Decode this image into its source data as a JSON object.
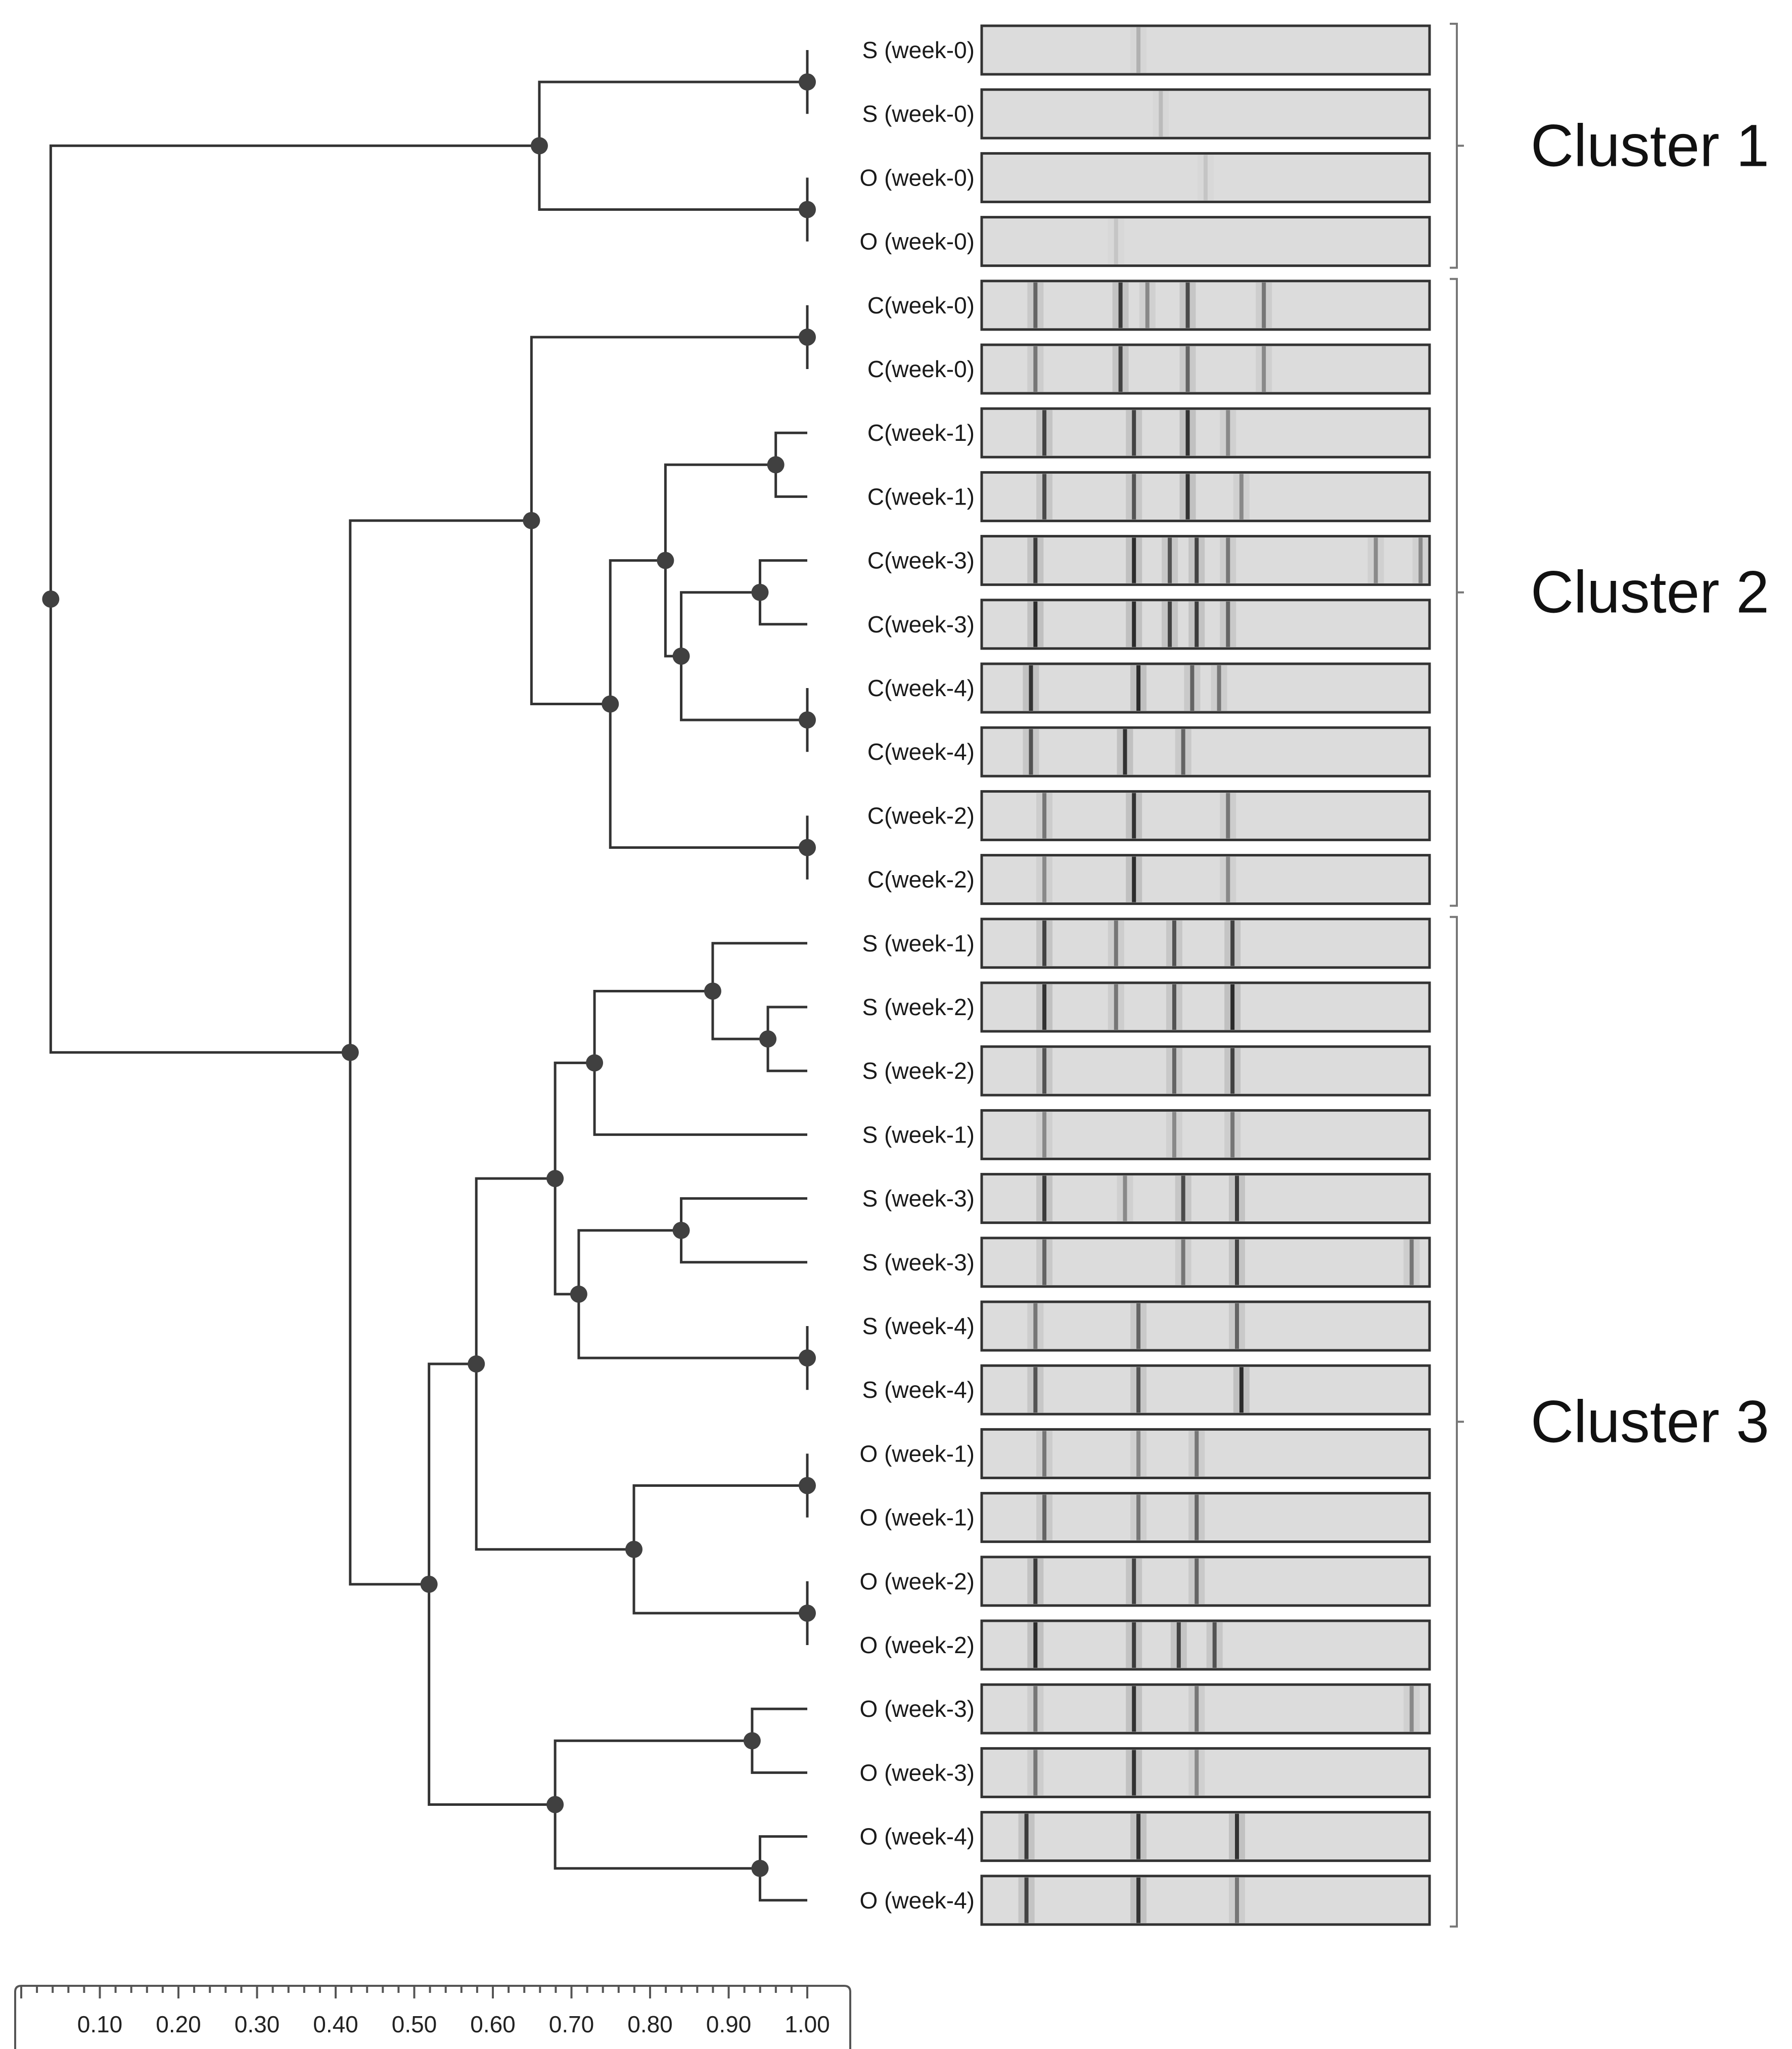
{
  "chart_data": {
    "type": "dendrogram",
    "title": "",
    "axis": {
      "ticks": [
        "0.10",
        "0.20",
        "0.30",
        "0.40",
        "0.50",
        "0.60",
        "0.70",
        "0.80",
        "0.90",
        "1.00"
      ],
      "range": [
        0.0,
        1.0
      ]
    },
    "lanes": [
      "S (week-0)",
      "S (week-0)",
      "O (week-0)",
      "O (week-0)",
      "C(week-0)",
      "C(week-0)",
      "C(week-1)",
      "C(week-1)",
      "C(week-3)",
      "C(week-3)",
      "C(week-4)",
      "C(week-4)",
      "C(week-2)",
      "C(week-2)",
      "S (week-1)",
      "S (week-2)",
      "S (week-2)",
      "S (week-1)",
      "S (week-3)",
      "S (week-3)",
      "S (week-4)",
      "S (week-4)",
      "O (week-1)",
      "O (week-1)",
      "O (week-2)",
      "O (week-2)",
      "O (week-3)",
      "O (week-3)",
      "O (week-4)",
      "O (week-4)"
    ],
    "clusters": [
      {
        "label": "Cluster 1",
        "first_lane": 0,
        "last_lane": 3
      },
      {
        "label": "Cluster 2",
        "first_lane": 4,
        "last_lane": 13
      },
      {
        "label": "Cluster 3",
        "first_lane": 14,
        "last_lane": 29
      }
    ],
    "merges": [
      {
        "id": "n1",
        "similarity": 1.0,
        "children": [
          "L0",
          "L1"
        ]
      },
      {
        "id": "n2",
        "similarity": 1.0,
        "children": [
          "L2",
          "L3"
        ]
      },
      {
        "id": "n3",
        "similarity": 0.66,
        "children": [
          "n1",
          "n2"
        ]
      },
      {
        "id": "n4",
        "similarity": 1.0,
        "children": [
          "L4",
          "L5"
        ]
      },
      {
        "id": "n5",
        "similarity": 0.96,
        "children": [
          "L6",
          "L7"
        ]
      },
      {
        "id": "n6",
        "similarity": 0.94,
        "children": [
          "L8",
          "L9"
        ]
      },
      {
        "id": "n7",
        "similarity": 1.0,
        "children": [
          "L10",
          "L11"
        ]
      },
      {
        "id": "n8",
        "similarity": 0.84,
        "children": [
          "n6",
          "n7"
        ]
      },
      {
        "id": "n9",
        "similarity": 0.82,
        "children": [
          "n5",
          "n8"
        ]
      },
      {
        "id": "n10",
        "similarity": 1.0,
        "children": [
          "L12",
          "L13"
        ]
      },
      {
        "id": "n11",
        "similarity": 0.75,
        "children": [
          "n9",
          "n10"
        ]
      },
      {
        "id": "n12",
        "similarity": 0.65,
        "children": [
          "n4",
          "n11"
        ]
      },
      {
        "id": "n13",
        "similarity": 0.95,
        "children": [
          "L15",
          "L16"
        ]
      },
      {
        "id": "n14",
        "similarity": 0.88,
        "children": [
          "L14",
          "n13"
        ]
      },
      {
        "id": "n15",
        "similarity": 0.73,
        "children": [
          "n14",
          "L17"
        ]
      },
      {
        "id": "n16",
        "similarity": 0.84,
        "children": [
          "L18",
          "L19"
        ]
      },
      {
        "id": "n17",
        "similarity": 1.0,
        "children": [
          "L20",
          "L21"
        ]
      },
      {
        "id": "n18",
        "similarity": 0.71,
        "children": [
          "n16",
          "n17"
        ]
      },
      {
        "id": "n19",
        "similarity": 0.68,
        "children": [
          "n15",
          "n18"
        ]
      },
      {
        "id": "n20",
        "similarity": 1.0,
        "children": [
          "L22",
          "L23"
        ]
      },
      {
        "id": "n21",
        "similarity": 1.0,
        "children": [
          "L24",
          "L25"
        ]
      },
      {
        "id": "n22",
        "similarity": 0.78,
        "children": [
          "n20",
          "n21"
        ]
      },
      {
        "id": "n23",
        "similarity": 0.58,
        "children": [
          "n19",
          "n22"
        ]
      },
      {
        "id": "n24",
        "similarity": 0.93,
        "children": [
          "L26",
          "L27"
        ]
      },
      {
        "id": "n25",
        "similarity": 0.94,
        "children": [
          "L28",
          "L29"
        ]
      },
      {
        "id": "n26",
        "similarity": 0.68,
        "children": [
          "n24",
          "n25"
        ]
      },
      {
        "id": "n27",
        "similarity": 0.52,
        "children": [
          "n23",
          "n26"
        ]
      },
      {
        "id": "n28",
        "similarity": 0.42,
        "children": [
          "n12",
          "n27"
        ]
      },
      {
        "id": "n29",
        "similarity": 0.04,
        "children": [
          "n3",
          "n28"
        ]
      }
    ],
    "lane_bands": [
      [
        [
          0.35,
          0.2
        ]
      ],
      [
        [
          0.4,
          0.15
        ]
      ],
      [
        [
          0.5,
          0.1
        ]
      ],
      [
        [
          0.3,
          0.1
        ]
      ],
      [
        [
          0.12,
          0.6
        ],
        [
          0.31,
          0.85
        ],
        [
          0.37,
          0.4
        ],
        [
          0.46,
          0.75
        ],
        [
          0.63,
          0.5
        ]
      ],
      [
        [
          0.12,
          0.5
        ],
        [
          0.31,
          0.8
        ],
        [
          0.46,
          0.6
        ],
        [
          0.63,
          0.4
        ]
      ],
      [
        [
          0.14,
          0.8
        ],
        [
          0.34,
          0.8
        ],
        [
          0.46,
          0.9
        ],
        [
          0.55,
          0.4
        ]
      ],
      [
        [
          0.14,
          0.75
        ],
        [
          0.34,
          0.7
        ],
        [
          0.46,
          0.9
        ],
        [
          0.58,
          0.4
        ]
      ],
      [
        [
          0.12,
          0.85
        ],
        [
          0.34,
          0.95
        ],
        [
          0.42,
          0.7
        ],
        [
          0.48,
          0.8
        ],
        [
          0.55,
          0.5
        ],
        [
          0.88,
          0.4
        ],
        [
          0.98,
          0.4
        ]
      ],
      [
        [
          0.12,
          0.95
        ],
        [
          0.34,
          0.95
        ],
        [
          0.42,
          0.8
        ],
        [
          0.48,
          0.85
        ],
        [
          0.55,
          0.6
        ]
      ],
      [
        [
          0.11,
          0.9
        ],
        [
          0.35,
          0.95
        ],
        [
          0.47,
          0.6
        ],
        [
          0.53,
          0.5
        ]
      ],
      [
        [
          0.11,
          0.7
        ],
        [
          0.32,
          0.9
        ],
        [
          0.45,
          0.6
        ]
      ],
      [
        [
          0.14,
          0.5
        ],
        [
          0.34,
          0.9
        ],
        [
          0.55,
          0.5
        ]
      ],
      [
        [
          0.14,
          0.4
        ],
        [
          0.34,
          0.95
        ],
        [
          0.55,
          0.4
        ]
      ],
      [
        [
          0.14,
          0.8
        ],
        [
          0.3,
          0.5
        ],
        [
          0.43,
          0.7
        ],
        [
          0.56,
          0.8
        ]
      ],
      [
        [
          0.14,
          0.9
        ],
        [
          0.3,
          0.5
        ],
        [
          0.43,
          0.7
        ],
        [
          0.56,
          0.95
        ]
      ],
      [
        [
          0.14,
          0.7
        ],
        [
          0.43,
          0.6
        ],
        [
          0.56,
          0.8
        ]
      ],
      [
        [
          0.14,
          0.4
        ],
        [
          0.43,
          0.4
        ],
        [
          0.56,
          0.5
        ]
      ],
      [
        [
          0.14,
          0.85
        ],
        [
          0.32,
          0.4
        ],
        [
          0.45,
          0.75
        ],
        [
          0.57,
          0.85
        ]
      ],
      [
        [
          0.14,
          0.6
        ],
        [
          0.45,
          0.5
        ],
        [
          0.57,
          0.8
        ],
        [
          0.96,
          0.5
        ]
      ],
      [
        [
          0.12,
          0.5
        ],
        [
          0.35,
          0.6
        ],
        [
          0.57,
          0.6
        ]
      ],
      [
        [
          0.12,
          0.7
        ],
        [
          0.35,
          0.7
        ],
        [
          0.58,
          0.95
        ]
      ],
      [
        [
          0.14,
          0.5
        ],
        [
          0.35,
          0.4
        ],
        [
          0.48,
          0.5
        ]
      ],
      [
        [
          0.14,
          0.6
        ],
        [
          0.35,
          0.5
        ],
        [
          0.48,
          0.6
        ]
      ],
      [
        [
          0.12,
          0.85
        ],
        [
          0.34,
          0.8
        ],
        [
          0.48,
          0.6
        ]
      ],
      [
        [
          0.12,
          0.95
        ],
        [
          0.34,
          0.85
        ],
        [
          0.44,
          0.8
        ],
        [
          0.52,
          0.7
        ]
      ],
      [
        [
          0.12,
          0.5
        ],
        [
          0.34,
          0.9
        ],
        [
          0.48,
          0.5
        ],
        [
          0.96,
          0.4
        ]
      ],
      [
        [
          0.12,
          0.5
        ],
        [
          0.34,
          0.9
        ],
        [
          0.48,
          0.4
        ]
      ],
      [
        [
          0.1,
          0.85
        ],
        [
          0.35,
          0.9
        ],
        [
          0.57,
          0.9
        ]
      ],
      [
        [
          0.1,
          0.8
        ],
        [
          0.35,
          0.9
        ],
        [
          0.57,
          0.5
        ]
      ]
    ]
  }
}
